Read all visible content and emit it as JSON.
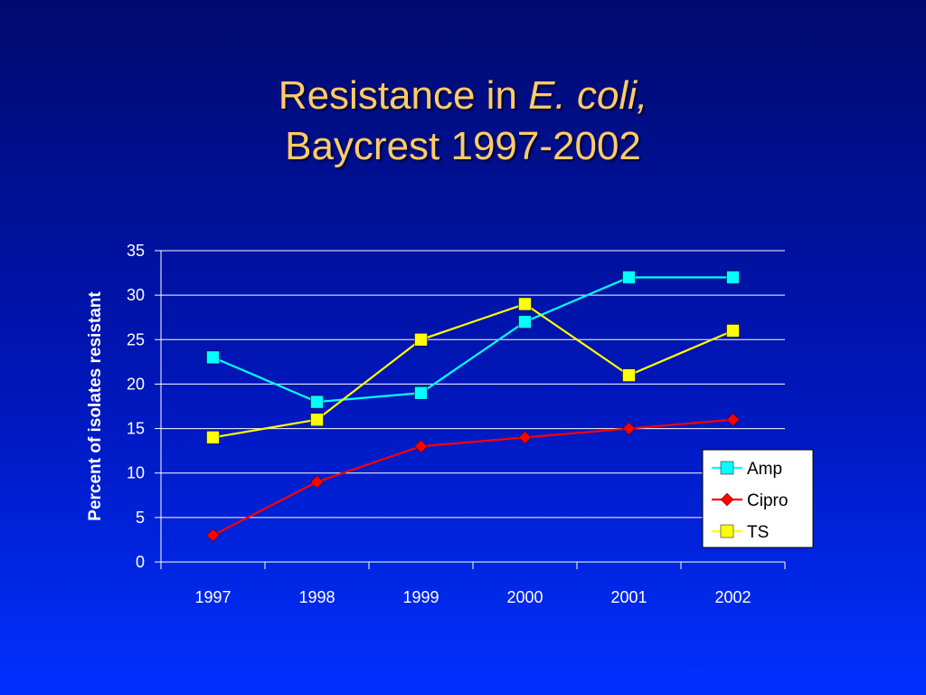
{
  "slide": {
    "title_part1": "Resistance in ",
    "title_italic": "E. coli,",
    "title_line2": "Baycrest 1997-2002"
  },
  "chart_data": {
    "type": "line",
    "title": "",
    "xlabel": "",
    "ylabel": "Percent of isolates resistant",
    "categories": [
      "1997",
      "1998",
      "1999",
      "2000",
      "2001",
      "2002"
    ],
    "ylim": [
      0,
      35
    ],
    "yticks": [
      0,
      5,
      10,
      15,
      20,
      25,
      30,
      35
    ],
    "grid": true,
    "legend_position": "right",
    "series": [
      {
        "name": "Amp",
        "values": [
          23,
          18,
          19,
          27,
          32,
          32
        ],
        "color": "#00ffff",
        "marker": "square"
      },
      {
        "name": "Cipro",
        "values": [
          3,
          9,
          13,
          14,
          15,
          16
        ],
        "color": "#ff0000",
        "marker": "diamond"
      },
      {
        "name": "TS",
        "values": [
          14,
          16,
          25,
          29,
          21,
          26
        ],
        "color": "#ffff00",
        "marker": "square"
      }
    ]
  }
}
